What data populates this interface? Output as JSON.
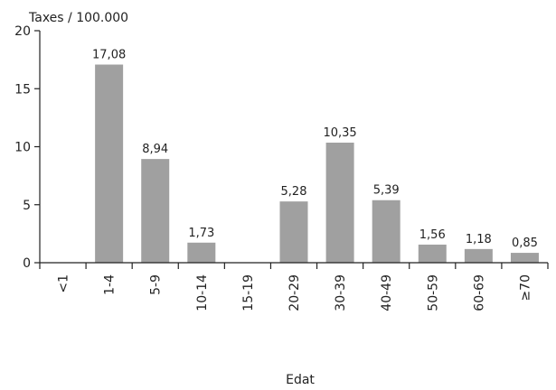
{
  "chart_data": {
    "type": "bar",
    "categories": [
      "<1",
      "1-4",
      "5-9",
      "10-14",
      "15-19",
      "20-29",
      "30-39",
      "40-49",
      "50-59",
      "60-69",
      "≥70"
    ],
    "values": [
      null,
      17.08,
      8.94,
      1.73,
      null,
      5.28,
      10.35,
      5.39,
      1.56,
      1.18,
      0.85
    ],
    "data_labels": [
      "",
      "17,08",
      "8,94",
      "1,73",
      "",
      "5,28",
      "10,35",
      "5,39",
      "1,56",
      "1,18",
      "0,85"
    ],
    "title": "",
    "ylabel": "Taxes / 100.000",
    "xlabel": "Edat",
    "ylim": [
      0,
      20
    ],
    "yticks": [
      0,
      5,
      10,
      15,
      20
    ],
    "grid": false,
    "bar_color": "#a0a0a0",
    "axis_color": "#222222"
  }
}
